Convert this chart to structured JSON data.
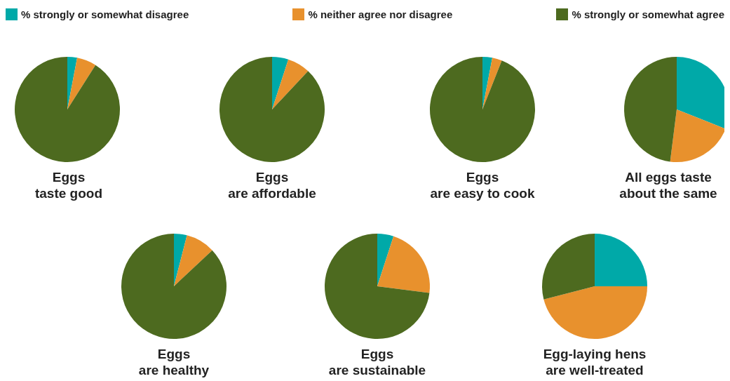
{
  "chart_data": [
    {
      "type": "pie",
      "title": "Eggs\ntaste good",
      "categories": [
        "% strongly or somewhat disagree",
        "% neither agree nor disagree",
        "% strongly or somewhat agree"
      ],
      "values": [
        3,
        6,
        91
      ],
      "colors": [
        "#00a9a8",
        "#e8912d",
        "#4d6a1f"
      ],
      "legend": "top"
    },
    {
      "type": "pie",
      "title": "Eggs\nare affordable",
      "categories": [
        null,
        null,
        null
      ],
      "values": [
        5,
        7,
        88
      ],
      "colors": [
        "#00a9a8",
        "#e8912d",
        "#4d6a1f"
      ]
    },
    {
      "type": "pie",
      "title": "Eggs\nare easy to cook",
      "categories": [
        null,
        null,
        null
      ],
      "values": [
        3,
        3,
        94
      ],
      "colors": [
        "#00a9a8",
        "#e8912d",
        "#4d6a1f"
      ]
    },
    {
      "type": "pie",
      "title": "All eggs taste\nabout the same",
      "categories": [
        null,
        null,
        null
      ],
      "values": [
        31,
        21,
        48
      ],
      "colors": [
        "#00a9a8",
        "#e8912d",
        "#4d6a1f"
      ]
    },
    {
      "type": "pie",
      "title": "Eggs\nare healthy",
      "categories": [
        null,
        null,
        null
      ],
      "values": [
        4,
        9,
        87
      ],
      "colors": [
        "#00a9a8",
        "#e8912d",
        "#4d6a1f"
      ]
    },
    {
      "type": "pie",
      "title": "Eggs\nare sustainable",
      "categories": [
        null,
        null,
        null
      ],
      "values": [
        5,
        22,
        73
      ],
      "colors": [
        "#00a9a8",
        "#e8912d",
        "#4d6a1f"
      ]
    },
    {
      "type": "pie",
      "title": "Egg-laying hens\nare well-treated",
      "categories": [
        null,
        null,
        null
      ],
      "values": [
        25,
        46,
        29
      ],
      "colors": [
        "#00a9a8",
        "#e8912d",
        "#4d6a1f"
      ]
    }
  ]
}
